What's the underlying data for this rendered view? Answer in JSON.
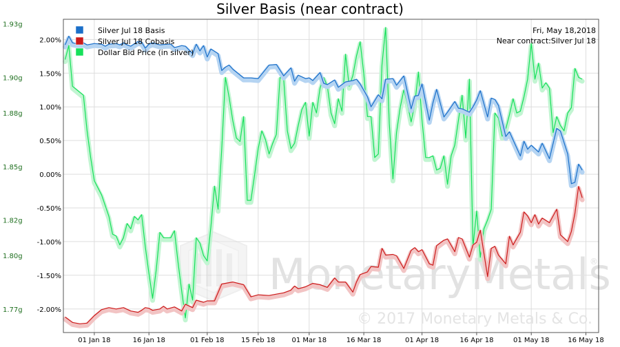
{
  "chart_data": {
    "type": "line",
    "title": "Silver Basis (near contract)",
    "annotation": {
      "date": "Fri, May 18,2018",
      "contract": "Near contract:Silver Jul 18"
    },
    "watermark": {
      "main": "MonetaryMetals",
      "copyright": "© 2017 Monetary Metals & Co.",
      "registered": "®"
    },
    "x_domain": [
      -8.5,
      138.5
    ],
    "x_ticks": [
      {
        "x": 0,
        "label": "01 Jan 18"
      },
      {
        "x": 15,
        "label": "16 Jan 18"
      },
      {
        "x": 31,
        "label": "01 Feb 18"
      },
      {
        "x": 45,
        "label": "15 Feb 18"
      },
      {
        "x": 59,
        "label": "01 Mar 18"
      },
      {
        "x": 74,
        "label": "16 Mar 18"
      },
      {
        "x": 90,
        "label": "01 Apr 18"
      },
      {
        "x": 105,
        "label": "16 Apr 18"
      },
      {
        "x": 120,
        "label": "01 May 18"
      },
      {
        "x": 135,
        "label": "16 May 18"
      }
    ],
    "left_axis": {
      "ylim": [
        1.7568,
        1.9326
      ],
      "ticks": [
        {
          "v": 1.93,
          "label": "1.93g"
        },
        {
          "v": 1.9,
          "label": "1.90g"
        },
        {
          "v": 1.88,
          "label": "1.88g"
        },
        {
          "v": 1.85,
          "label": "1.85g"
        },
        {
          "v": 1.82,
          "label": "1.82g"
        },
        {
          "v": 1.8,
          "label": "1.80g"
        },
        {
          "v": 1.77,
          "label": "1.77g"
        }
      ],
      "color": "#1f6f1f"
    },
    "right_axis": {
      "ylim": [
        -2.35,
        2.3
      ],
      "ticks": [
        {
          "v": 2.0,
          "label": "2.00%"
        },
        {
          "v": 1.5,
          "label": "1.50%"
        },
        {
          "v": 1.0,
          "label": "1.00%"
        },
        {
          "v": 0.5,
          "label": "0.50%"
        },
        {
          "v": 0.0,
          "label": "0.00%"
        },
        {
          "v": -0.5,
          "label": "-0.50%"
        },
        {
          "v": -1.0,
          "label": "-1.00%"
        },
        {
          "v": -1.5,
          "label": "-1.50%"
        },
        {
          "v": -2.0,
          "label": "-2.00%"
        }
      ]
    },
    "grid": true,
    "legend_position": "top-left",
    "series": [
      {
        "name": "Silver Jul 18 Basis",
        "color": "#1a6fc9",
        "glow": "#b5d4f2",
        "axis": "right",
        "x": [
          -8,
          -7,
          -6,
          -4,
          -3,
          -2,
          0,
          2,
          3,
          4,
          6,
          7,
          8,
          9,
          10,
          12,
          13,
          14,
          15,
          16,
          18,
          20,
          21,
          22,
          24,
          25,
          27,
          28,
          29,
          30,
          31,
          32,
          34,
          35,
          36,
          37,
          38,
          41,
          43,
          45,
          48,
          50,
          52,
          54,
          55,
          56,
          58,
          59,
          60,
          62,
          63,
          64,
          66,
          67,
          69,
          71,
          72,
          73,
          75,
          76,
          78,
          79,
          80,
          82,
          83,
          85,
          87,
          88,
          89,
          90,
          92,
          93,
          94,
          96,
          97,
          99,
          100,
          101,
          103,
          104,
          105,
          106,
          108,
          109,
          110,
          111,
          113,
          114,
          115,
          117,
          118,
          119,
          120,
          121,
          122,
          123,
          125,
          127,
          128,
          130,
          131,
          132,
          133,
          134
        ],
        "y": [
          1.92,
          2.05,
          1.95,
          1.93,
          1.95,
          1.92,
          1.94,
          1.93,
          1.9,
          1.93,
          1.94,
          1.92,
          1.95,
          1.92,
          1.9,
          1.97,
          1.96,
          1.87,
          1.93,
          1.95,
          1.92,
          1.93,
          1.93,
          1.88,
          1.91,
          1.9,
          1.79,
          1.93,
          1.83,
          1.91,
          1.74,
          1.86,
          1.79,
          1.54,
          1.59,
          1.62,
          1.56,
          1.43,
          1.43,
          1.42,
          1.62,
          1.63,
          1.46,
          1.58,
          1.38,
          1.47,
          1.42,
          1.43,
          1.39,
          1.51,
          1.35,
          1.33,
          1.4,
          1.29,
          1.37,
          1.39,
          1.41,
          1.34,
          1.15,
          1.0,
          1.18,
          1.12,
          1.41,
          1.42,
          1.32,
          1.46,
          0.97,
          1.16,
          1.17,
          1.34,
          0.8,
          1.06,
          1.26,
          0.85,
          0.92,
          1.08,
          0.98,
          0.97,
          0.92,
          1.0,
          1.1,
          1.24,
          0.85,
          1.13,
          1.11,
          1.02,
          0.56,
          0.63,
          0.51,
          0.27,
          0.49,
          0.37,
          0.43,
          0.38,
          0.33,
          0.46,
          0.23,
          0.68,
          0.64,
          0.3,
          -0.14,
          -0.12,
          0.15,
          0.06
        ]
      },
      {
        "name": "Silver Jul 18 Cobasis",
        "color": "#cc1a1a",
        "glow": "#f2c4c4",
        "axis": "right",
        "x": [
          -8,
          -6,
          -4,
          -2,
          0,
          2,
          4,
          6,
          8,
          10,
          12,
          13,
          14,
          15,
          16,
          18,
          19,
          20,
          22,
          24,
          25,
          27,
          28,
          30,
          31,
          33,
          35,
          38,
          41,
          43,
          45,
          48,
          50,
          52,
          54,
          55,
          56,
          58,
          60,
          62,
          64,
          66,
          67,
          69,
          71,
          72,
          73,
          75,
          76,
          78,
          79,
          80,
          82,
          83,
          85,
          87,
          88,
          89,
          90,
          92,
          93,
          94,
          96,
          97,
          99,
          100,
          101,
          103,
          104,
          105,
          106,
          108,
          109,
          110,
          111,
          113,
          114,
          115,
          117,
          118,
          119,
          120,
          121,
          122,
          123,
          125,
          127,
          128,
          130,
          131,
          132,
          133,
          134
        ],
        "y": [
          -2.12,
          -2.2,
          -2.22,
          -2.21,
          -2.1,
          -2.01,
          -1.98,
          -2.0,
          -1.98,
          -2.03,
          -2.05,
          -2.02,
          -1.98,
          -1.99,
          -2.02,
          -2.0,
          -1.96,
          -2.0,
          -1.97,
          -2.03,
          -1.93,
          -1.98,
          -1.87,
          -1.9,
          -1.88,
          -1.88,
          -1.63,
          -1.6,
          -1.64,
          -1.82,
          -1.79,
          -1.8,
          -1.78,
          -1.76,
          -1.72,
          -1.66,
          -1.7,
          -1.67,
          -1.62,
          -1.64,
          -1.68,
          -1.54,
          -1.6,
          -1.6,
          -1.75,
          -1.6,
          -1.49,
          -1.45,
          -1.37,
          -1.38,
          -1.1,
          -1.2,
          -1.19,
          -1.21,
          -1.4,
          -1.13,
          -1.09,
          -1.15,
          -1.12,
          -1.33,
          -1.35,
          -1.06,
          -0.98,
          -0.96,
          -1.15,
          -0.94,
          -0.96,
          -1.23,
          -1.05,
          -1.01,
          -0.83,
          -1.52,
          -1.1,
          -1.07,
          -1.2,
          -1.33,
          -0.92,
          -1.05,
          -0.86,
          -0.56,
          -0.62,
          -0.72,
          -0.6,
          -0.74,
          -0.65,
          -0.72,
          -0.52,
          -0.9,
          -1.0,
          -0.85,
          -0.58,
          -0.18,
          -0.35
        ]
      },
      {
        "name": "Dollar Bid Price (in silver)",
        "color": "#16e05a",
        "glow": "#c2f5d2",
        "axis": "left",
        "x": [
          -8,
          -7,
          -6,
          -3,
          -2,
          -1,
          0,
          1,
          2,
          3,
          4,
          5,
          6,
          7,
          8,
          9,
          10,
          11,
          12,
          13,
          14,
          15,
          16,
          17,
          18,
          19,
          20,
          21,
          22,
          23,
          24,
          25,
          26,
          27,
          28,
          29,
          30,
          31,
          32,
          33,
          34,
          35,
          36,
          37,
          38,
          39,
          40,
          41,
          42,
          43,
          44,
          45,
          46,
          47,
          48,
          49,
          50,
          51,
          52,
          53,
          54,
          55,
          56,
          57,
          58,
          59,
          60,
          61,
          62,
          63,
          64,
          65,
          66,
          67,
          68,
          69,
          70,
          71,
          72,
          73,
          74,
          75,
          76,
          77,
          78,
          79,
          80,
          81,
          82,
          83,
          84,
          85,
          86,
          87,
          88,
          89,
          90,
          91,
          92,
          93,
          94,
          95,
          96,
          97,
          98,
          99,
          100,
          101,
          102,
          103,
          104,
          105,
          106,
          107,
          108,
          109,
          110,
          111,
          112,
          113,
          114,
          115,
          116,
          117,
          118,
          119,
          120,
          121,
          122,
          123,
          124,
          125,
          126,
          127,
          128,
          129,
          130,
          131,
          132,
          133,
          134
        ],
        "y": [
          1.91,
          1.918,
          1.895,
          1.89,
          1.87,
          1.855,
          1.842,
          1.838,
          1.834,
          1.828,
          1.822,
          1.812,
          1.811,
          1.806,
          1.81,
          1.818,
          1.815,
          1.822,
          1.82,
          1.823,
          1.805,
          1.79,
          1.776,
          1.792,
          1.813,
          1.81,
          1.81,
          1.81,
          1.814,
          1.796,
          1.78,
          1.765,
          1.784,
          1.775,
          1.81,
          1.807,
          1.8,
          1.797,
          1.816,
          1.839,
          1.826,
          1.86,
          1.9,
          1.889,
          1.876,
          1.866,
          1.864,
          1.878,
          1.831,
          1.831,
          1.845,
          1.86,
          1.87,
          1.865,
          1.857,
          1.863,
          1.868,
          1.9,
          1.899,
          1.87,
          1.86,
          1.863,
          1.873,
          1.882,
          1.886,
          1.867,
          1.886,
          1.88,
          1.894,
          1.9,
          1.895,
          1.88,
          1.874,
          1.888,
          1.881,
          1.913,
          1.895,
          1.901,
          1.912,
          1.92,
          1.902,
          1.878,
          1.878,
          1.855,
          1.857,
          1.907,
          1.928,
          1.874,
          1.843,
          1.869,
          1.883,
          1.893,
          1.885,
          1.875,
          1.885,
          1.903,
          1.876,
          1.855,
          1.855,
          1.856,
          1.848,
          1.849,
          1.856,
          1.84,
          1.856,
          1.862,
          1.876,
          1.89,
          1.866,
          1.899,
          1.805,
          1.825,
          1.799,
          1.815,
          1.82,
          1.826,
          1.88,
          1.877,
          1.867,
          1.871,
          1.879,
          1.888,
          1.88,
          1.881,
          1.889,
          1.899,
          1.919,
          1.899,
          1.908,
          1.894,
          1.897,
          1.894,
          1.869,
          1.878,
          1.873,
          1.87,
          1.88,
          1.883,
          1.905,
          1.9,
          1.899
        ]
      }
    ]
  }
}
